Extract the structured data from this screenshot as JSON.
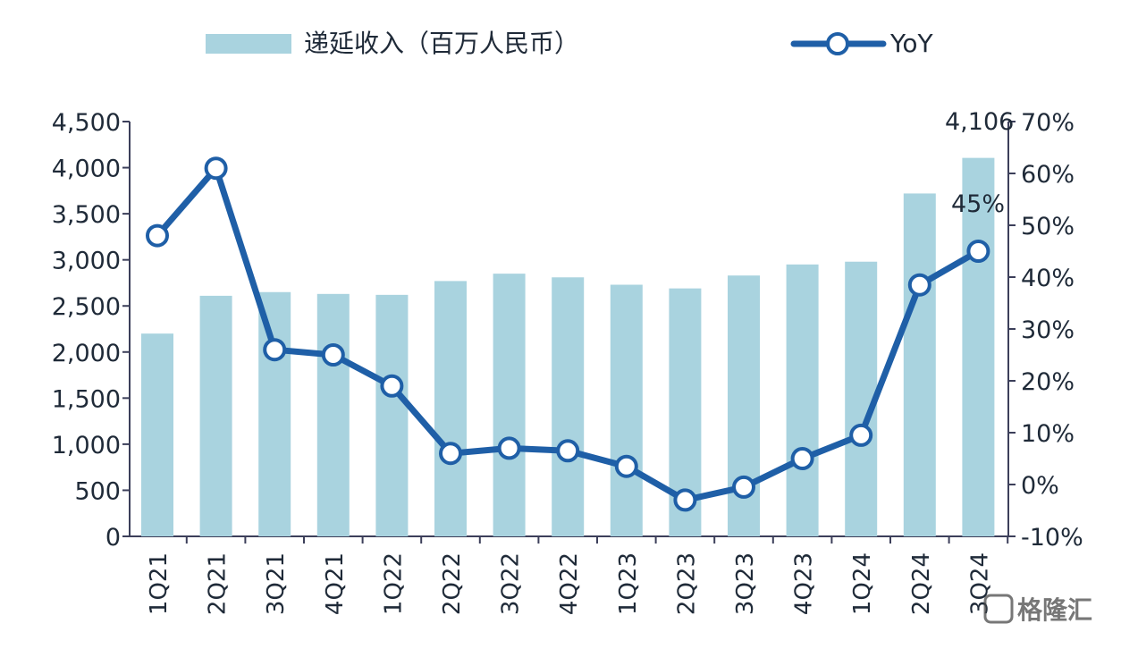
{
  "chart_data": {
    "type": "bar+line",
    "categories": [
      "1Q21",
      "2Q21",
      "3Q21",
      "4Q21",
      "1Q22",
      "2Q22",
      "3Q22",
      "4Q22",
      "1Q23",
      "2Q23",
      "3Q23",
      "4Q23",
      "1Q24",
      "2Q24",
      "3Q24"
    ],
    "series": [
      {
        "name": "递延收入（百万人民币）",
        "type": "bar",
        "axis": "left",
        "values": [
          2200,
          2610,
          2650,
          2630,
          2620,
          2770,
          2850,
          2810,
          2730,
          2690,
          2830,
          2950,
          2980,
          3720,
          4106
        ]
      },
      {
        "name": "YoY",
        "type": "line",
        "axis": "right",
        "values": [
          48,
          61,
          26,
          25,
          19,
          6,
          7,
          6.5,
          3.5,
          -3,
          -0.5,
          5,
          9.5,
          38.5,
          45
        ]
      }
    ],
    "y_left": {
      "lim": [
        0,
        4500
      ],
      "ticks": [
        "0",
        "500",
        "1,000",
        "1,500",
        "2,000",
        "2,500",
        "3,000",
        "3,500",
        "4,000",
        "4,500"
      ]
    },
    "y_right": {
      "lim": [
        -10,
        70
      ],
      "ticks": [
        "-10%",
        "0%",
        "10%",
        "20%",
        "30%",
        "40%",
        "50%",
        "60%",
        "70%"
      ]
    },
    "annotations": [
      "4,106",
      "45%"
    ],
    "colors": {
      "bar": "#a9d3df",
      "line": "#1f5fa7",
      "axis": "#3c3f5a"
    },
    "legend": {
      "position": "top",
      "bar_label": "递延收入（百万人民币）",
      "line_label": "YoY"
    },
    "grid": false
  },
  "watermark": {
    "text": "格隆汇",
    "icon": "logo-icon"
  }
}
